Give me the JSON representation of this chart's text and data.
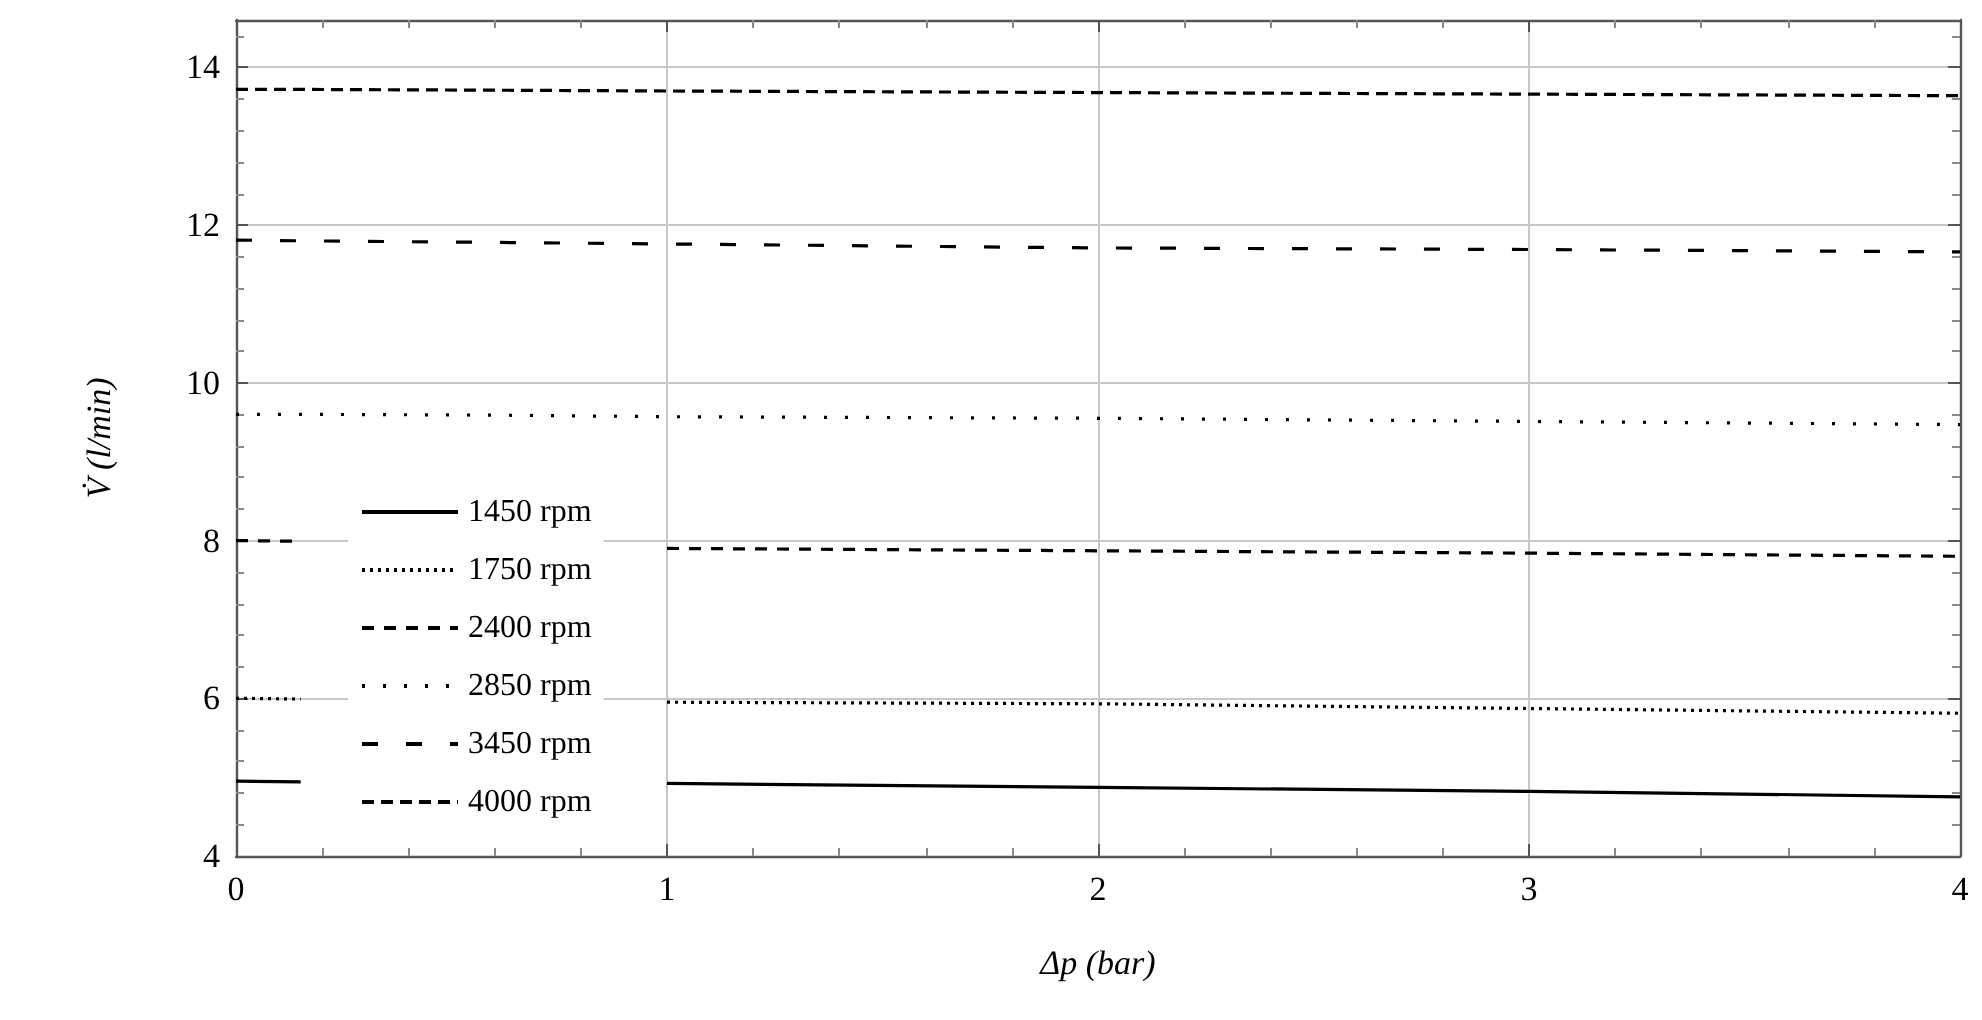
{
  "chart_data": {
    "type": "line",
    "xlabel": "Δp (bar)",
    "ylabel": "V̇ (l/min)",
    "x": [
      0,
      0.15,
      0.6,
      1,
      2,
      3,
      4
    ],
    "series": [
      {
        "name": "1450 rpm",
        "color": "#000000",
        "line_style": "solid",
        "values": [
          4.95,
          4.94,
          null,
          4.92,
          4.87,
          4.82,
          4.75
        ]
      },
      {
        "name": "1750 rpm",
        "color": "#000000",
        "line_style": "dotted",
        "values": [
          6.0,
          5.99,
          null,
          5.95,
          5.93,
          5.87,
          5.81
        ]
      },
      {
        "name": "2400 rpm",
        "color": "#000000",
        "line_style": "dashed",
        "values": [
          8.0,
          7.99,
          null,
          7.9,
          7.87,
          7.84,
          7.8
        ]
      },
      {
        "name": "2850 rpm",
        "color": "#000000",
        "line_style": "dotted",
        "values": [
          9.6,
          9.6,
          9.59,
          9.57,
          9.55,
          9.51,
          9.47
        ]
      },
      {
        "name": "3450 rpm",
        "color": "#000000",
        "line_style": "dashed",
        "values": [
          11.81,
          11.8,
          11.78,
          11.76,
          11.71,
          11.69,
          11.66
        ]
      },
      {
        "name": "4000 rpm",
        "color": "#000000",
        "line_style": "dashed",
        "values": [
          13.72,
          13.72,
          13.71,
          13.7,
          13.68,
          13.66,
          13.64
        ]
      }
    ],
    "xlim": [
      0,
      4
    ],
    "xticks": [
      0,
      1,
      2,
      3,
      4
    ],
    "ylim": [
      4,
      14.6
    ],
    "yticks": [
      4,
      6,
      8,
      10,
      12,
      14
    ],
    "grid": true,
    "legend": "left",
    "marker": "none"
  }
}
